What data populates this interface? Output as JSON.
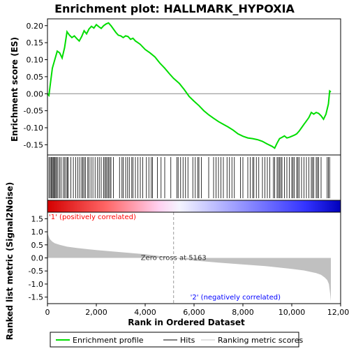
{
  "chart_data": {
    "type": "line",
    "title": "Enrichment plot: HALLMARK_HYPOXIA",
    "xlabel": "Rank in Ordered Dataset",
    "ylabel_top": "Enrichment score (ES)",
    "ylabel_bottom": "Ranked list metric (Signal2Noise)",
    "xlim": [
      0,
      12000
    ],
    "x_ticks": [
      0,
      2000,
      4000,
      6000,
      8000,
      10000,
      12000
    ],
    "x_tick_labels": [
      "0",
      "2,000",
      "4,000",
      "6,000",
      "8,000",
      "10,000",
      "12,000"
    ],
    "n_genes": 11600,
    "es_ylim": [
      -0.18,
      0.22
    ],
    "es_ticks": [
      -0.15,
      -0.1,
      -0.05,
      0.0,
      0.05,
      0.1,
      0.15,
      0.2
    ],
    "es_tick_labels": [
      "-0.15",
      "-0.10",
      "-0.05",
      "0.00",
      "0.05",
      "0.10",
      "0.15",
      "0.20"
    ],
    "metric_ylim": [
      -1.75,
      1.75
    ],
    "metric_ticks": [
      -1.5,
      -1.0,
      -0.5,
      0.0,
      0.5,
      1.0,
      1.5
    ],
    "metric_tick_labels": [
      "-1.5",
      "-1.0",
      "-0.5",
      "0.0",
      "0.5",
      "1.0",
      "1.5"
    ],
    "es_color": "#00dd00",
    "series": [
      {
        "name": "Enrichment profile",
        "x": [
          0,
          60,
          120,
          200,
          300,
          400,
          500,
          600,
          700,
          800,
          900,
          1000,
          1100,
          1200,
          1300,
          1400,
          1500,
          1600,
          1700,
          1800,
          1900,
          2000,
          2100,
          2200,
          2300,
          2400,
          2500,
          2600,
          2700,
          2800,
          2900,
          3000,
          3100,
          3200,
          3300,
          3400,
          3500,
          3600,
          3700,
          3800,
          4000,
          4200,
          4400,
          4600,
          4800,
          5000,
          5163,
          5400,
          5600,
          5800,
          6000,
          6200,
          6400,
          6600,
          6800,
          7000,
          7200,
          7400,
          7600,
          7800,
          8000,
          8200,
          8400,
          8600,
          8800,
          9000,
          9200,
          9300,
          9400,
          9500,
          9600,
          9700,
          9800,
          9900,
          10000,
          10100,
          10200,
          10300,
          10400,
          10500,
          10600,
          10700,
          10800,
          10900,
          11000,
          11100,
          11200,
          11300,
          11400,
          11500,
          11550,
          11600
        ],
        "values": [
          0.0,
          -0.005,
          0.03,
          0.075,
          0.1,
          0.125,
          0.12,
          0.105,
          0.135,
          0.182,
          0.172,
          0.165,
          0.17,
          0.162,
          0.155,
          0.168,
          0.185,
          0.176,
          0.19,
          0.198,
          0.193,
          0.203,
          0.197,
          0.192,
          0.2,
          0.205,
          0.208,
          0.2,
          0.19,
          0.18,
          0.172,
          0.17,
          0.165,
          0.17,
          0.168,
          0.16,
          0.163,
          0.155,
          0.15,
          0.145,
          0.13,
          0.12,
          0.108,
          0.09,
          0.075,
          0.058,
          0.045,
          0.03,
          0.012,
          -0.008,
          -0.022,
          -0.035,
          -0.05,
          -0.062,
          -0.072,
          -0.082,
          -0.09,
          -0.098,
          -0.107,
          -0.118,
          -0.125,
          -0.13,
          -0.132,
          -0.135,
          -0.14,
          -0.148,
          -0.155,
          -0.16,
          -0.145,
          -0.132,
          -0.128,
          -0.124,
          -0.13,
          -0.128,
          -0.125,
          -0.122,
          -0.118,
          -0.11,
          -0.1,
          -0.09,
          -0.08,
          -0.07,
          -0.055,
          -0.06,
          -0.055,
          -0.058,
          -0.065,
          -0.075,
          -0.06,
          -0.03,
          0.008,
          0.005
        ]
      },
      {
        "name": "Ranking metric scores"
      },
      {
        "name": "Hits"
      }
    ],
    "hits": [
      60,
      110,
      150,
      190,
      230,
      260,
      300,
      340,
      380,
      430,
      500,
      560,
      640,
      700,
      760,
      810,
      850,
      960,
      1060,
      1160,
      1240,
      1320,
      1400,
      1450,
      1500,
      1560,
      1650,
      1700,
      1780,
      1860,
      1950,
      2050,
      2120,
      2200,
      2300,
      2350,
      2400,
      2450,
      2500,
      2550,
      2600,
      2700,
      2950,
      3050,
      3100,
      3200,
      3280,
      3350,
      3450,
      3500,
      3600,
      3700,
      3800,
      3900,
      4050,
      4150,
      4250,
      4300,
      4500,
      4650,
      4800,
      5050,
      5300,
      5350,
      5450,
      5550,
      5650,
      5750,
      5950,
      6050,
      6150,
      6200,
      6300,
      6600,
      6800,
      6900,
      7000,
      7100,
      7200,
      7350,
      7450,
      7550,
      7650,
      7900,
      8000,
      8200,
      8300,
      8400,
      8450,
      8550,
      8650,
      8800,
      8900,
      9000,
      9100,
      9250,
      9300,
      9400,
      9450,
      9500,
      9550,
      9600,
      9700,
      9800,
      9900,
      10000,
      10050,
      10100,
      10200,
      10250,
      10300,
      10400,
      10500,
      10600,
      10700,
      10800,
      10850,
      10900,
      11000,
      11050,
      11100,
      11200,
      11450,
      11500,
      11550
    ],
    "metric_curve": {
      "x": [
        0,
        20,
        50,
        100,
        200,
        300,
        500,
        800,
        1200,
        2000,
        3000,
        4000,
        5163,
        6000,
        7000,
        8000,
        9000,
        10000,
        10500,
        11000,
        11200,
        11350,
        11450,
        11520,
        11570,
        11600
      ],
      "values": [
        1.05,
        0.9,
        0.82,
        0.72,
        0.62,
        0.56,
        0.5,
        0.43,
        0.38,
        0.3,
        0.22,
        0.14,
        0.0,
        -0.1,
        -0.18,
        -0.25,
        -0.32,
        -0.42,
        -0.48,
        -0.58,
        -0.65,
        -0.75,
        -0.85,
        -1.0,
        -1.35,
        -1.65
      ]
    },
    "zero_cross": {
      "rank": 5163,
      "label": "Zero cross at 5163"
    },
    "pos_label": "'1' (positively correlated)",
    "neg_label": "'2' (negatively correlated)",
    "pos_color": "#ff0000",
    "neg_color": "#0000ff",
    "legend": {
      "placement": "bottom",
      "items": [
        {
          "name": "Enrichment profile",
          "color": "#00dd00"
        },
        {
          "name": "Hits",
          "color": "#000000"
        },
        {
          "name": "Ranking metric scores",
          "color": "#c0c0c0"
        }
      ]
    }
  }
}
